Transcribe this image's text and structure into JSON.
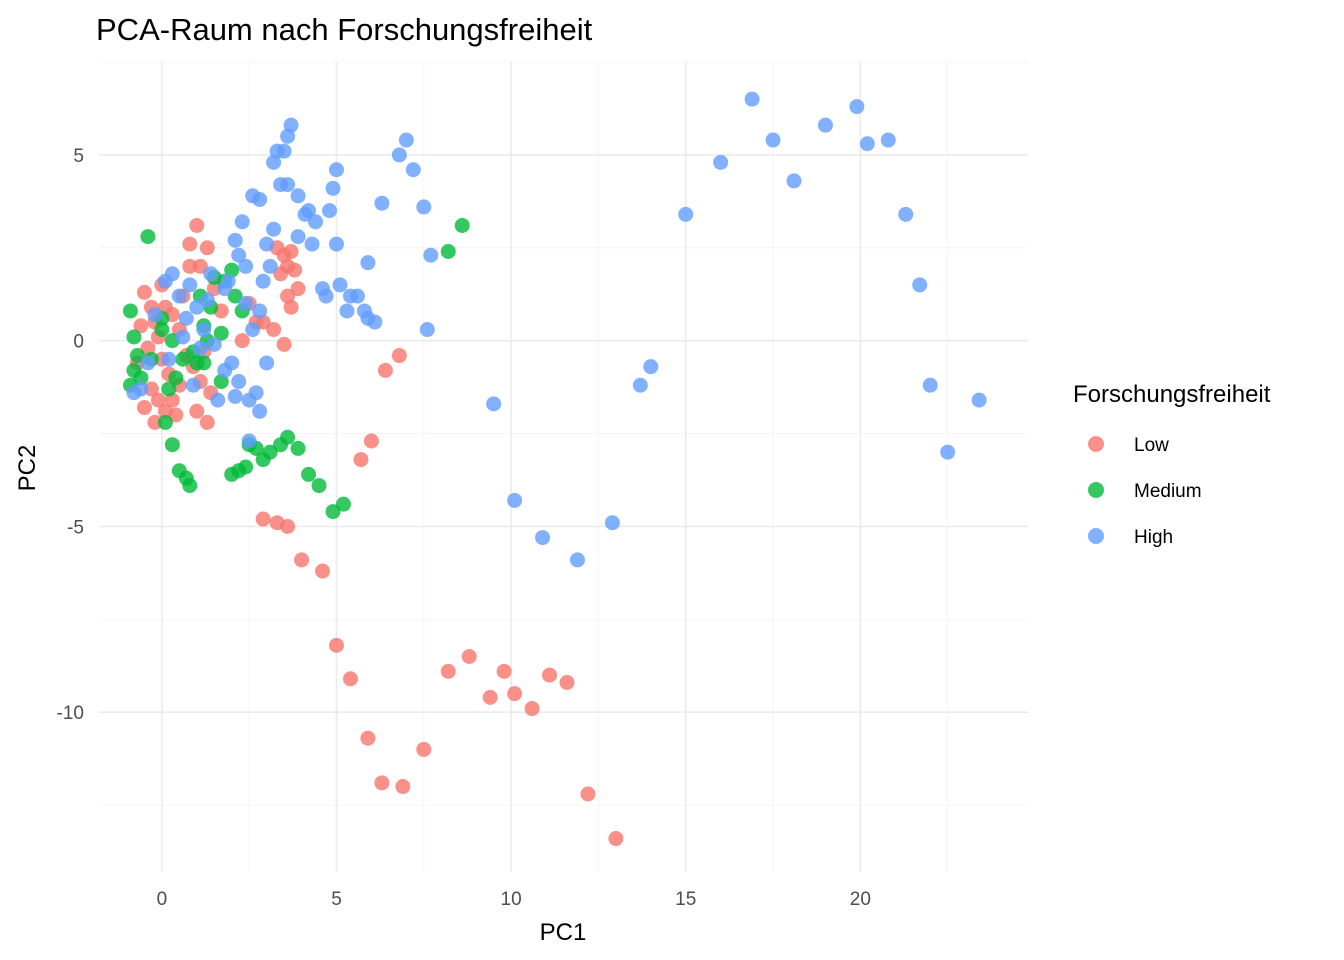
{
  "chart_data": {
    "type": "scatter",
    "title": "PCA-Raum nach Forschungsfreiheit",
    "xlabel": "PC1",
    "ylabel": "PC2",
    "xlim": [
      -1.8,
      24.8
    ],
    "ylim": [
      -14.3,
      7.5
    ],
    "x_ticks": [
      0,
      5,
      10,
      15,
      20
    ],
    "y_ticks": [
      -10,
      -5,
      0,
      5
    ],
    "grid": true,
    "legend": {
      "title": "Forschungsfreiheit",
      "position": "right"
    },
    "series": [
      {
        "name": "Low",
        "color": "#F8766D",
        "points": [
          [
            13.0,
            -13.4
          ],
          [
            12.2,
            -12.2
          ],
          [
            6.9,
            -12.0
          ],
          [
            6.3,
            -11.9
          ],
          [
            5.9,
            -10.7
          ],
          [
            7.5,
            -11.0
          ],
          [
            5.0,
            -8.2
          ],
          [
            5.4,
            -9.1
          ],
          [
            8.2,
            -8.9
          ],
          [
            8.8,
            -8.5
          ],
          [
            9.4,
            -9.6
          ],
          [
            9.8,
            -8.9
          ],
          [
            10.1,
            -9.5
          ],
          [
            10.6,
            -9.9
          ],
          [
            11.1,
            -9.0
          ],
          [
            11.6,
            -9.2
          ],
          [
            4.0,
            -5.9
          ],
          [
            4.6,
            -6.2
          ],
          [
            2.9,
            -4.8
          ],
          [
            3.3,
            -4.9
          ],
          [
            3.6,
            -5.0
          ],
          [
            5.7,
            -3.2
          ],
          [
            6.0,
            -2.7
          ],
          [
            6.4,
            -0.8
          ],
          [
            6.8,
            -0.4
          ],
          [
            1.0,
            -1.9
          ],
          [
            1.3,
            -2.2
          ],
          [
            1.1,
            2.0
          ],
          [
            1.0,
            3.1
          ],
          [
            0.8,
            2.6
          ],
          [
            1.3,
            2.5
          ],
          [
            0.8,
            2.0
          ],
          [
            1.5,
            1.4
          ],
          [
            2.3,
            0.0
          ],
          [
            3.3,
            2.5
          ],
          [
            3.5,
            2.3
          ],
          [
            3.7,
            2.4
          ],
          [
            3.6,
            2.0
          ],
          [
            3.8,
            1.9
          ],
          [
            3.4,
            1.8
          ],
          [
            3.6,
            1.2
          ],
          [
            3.7,
            0.9
          ],
          [
            3.9,
            1.4
          ],
          [
            3.2,
            0.3
          ],
          [
            3.5,
            -0.1
          ],
          [
            2.9,
            0.5
          ],
          [
            2.5,
            1.0
          ],
          [
            2.7,
            0.5
          ],
          [
            1.7,
            0.8
          ],
          [
            1.4,
            -1.4
          ],
          [
            1.1,
            -1.1
          ],
          [
            -0.5,
            1.3
          ],
          [
            -0.3,
            0.9
          ],
          [
            -0.2,
            0.5
          ],
          [
            0.1,
            0.9
          ],
          [
            0.3,
            0.7
          ],
          [
            0.5,
            0.3
          ],
          [
            -0.1,
            0.1
          ],
          [
            -0.4,
            -0.2
          ],
          [
            0.0,
            -0.5
          ],
          [
            0.2,
            -0.9
          ],
          [
            -0.3,
            -1.3
          ],
          [
            -0.5,
            -1.8
          ],
          [
            0.1,
            -1.9
          ],
          [
            -0.2,
            -2.2
          ],
          [
            0.3,
            -1.6
          ],
          [
            0.5,
            -1.2
          ],
          [
            0.7,
            -0.4
          ],
          [
            0.9,
            -0.7
          ],
          [
            1.2,
            -0.3
          ],
          [
            0.6,
            1.2
          ],
          [
            -0.6,
            0.4
          ],
          [
            -0.7,
            -0.6
          ],
          [
            0.4,
            -2.0
          ],
          [
            0.0,
            1.5
          ],
          [
            -0.1,
            -1.6
          ]
        ]
      },
      {
        "name": "Medium",
        "color": "#00BA38",
        "points": [
          [
            -0.4,
            2.8
          ],
          [
            8.6,
            3.1
          ],
          [
            8.2,
            2.4
          ],
          [
            -0.9,
            0.8
          ],
          [
            -0.8,
            0.1
          ],
          [
            -0.7,
            -0.4
          ],
          [
            -0.6,
            -1.0
          ],
          [
            -0.9,
            -1.2
          ],
          [
            -0.3,
            -0.5
          ],
          [
            0.0,
            0.3
          ],
          [
            0.3,
            0.0
          ],
          [
            0.6,
            -0.5
          ],
          [
            0.9,
            -0.3
          ],
          [
            0.4,
            -1.0
          ],
          [
            0.1,
            -2.2
          ],
          [
            0.3,
            -2.8
          ],
          [
            0.5,
            -3.5
          ],
          [
            0.7,
            -3.7
          ],
          [
            0.8,
            -3.9
          ],
          [
            1.0,
            -0.6
          ],
          [
            1.2,
            0.4
          ],
          [
            1.4,
            0.9
          ],
          [
            1.5,
            1.7
          ],
          [
            1.8,
            1.6
          ],
          [
            2.0,
            1.9
          ],
          [
            2.1,
            1.2
          ],
          [
            2.3,
            0.8
          ],
          [
            1.7,
            0.2
          ],
          [
            1.2,
            -0.6
          ],
          [
            2.5,
            -2.8
          ],
          [
            2.7,
            -2.9
          ],
          [
            2.9,
            -3.2
          ],
          [
            3.1,
            -3.0
          ],
          [
            3.4,
            -2.8
          ],
          [
            3.6,
            -2.6
          ],
          [
            3.9,
            -2.9
          ],
          [
            4.2,
            -3.6
          ],
          [
            4.5,
            -3.9
          ],
          [
            4.9,
            -4.6
          ],
          [
            5.2,
            -4.4
          ],
          [
            2.0,
            -3.6
          ],
          [
            2.2,
            -3.5
          ],
          [
            2.4,
            -3.4
          ],
          [
            1.7,
            -1.1
          ],
          [
            0.2,
            -1.3
          ],
          [
            -0.8,
            -0.8
          ],
          [
            0.0,
            0.6
          ],
          [
            1.1,
            1.2
          ],
          [
            1.3,
            0.0
          ]
        ]
      },
      {
        "name": "High",
        "color": "#619CFF",
        "points": [
          [
            16.9,
            6.5
          ],
          [
            17.5,
            5.4
          ],
          [
            16.0,
            4.8
          ],
          [
            18.1,
            4.3
          ],
          [
            19.0,
            5.8
          ],
          [
            19.9,
            6.3
          ],
          [
            20.2,
            5.3
          ],
          [
            20.8,
            5.4
          ],
          [
            21.3,
            3.4
          ],
          [
            21.7,
            1.5
          ],
          [
            22.0,
            -1.2
          ],
          [
            22.5,
            -3.0
          ],
          [
            23.4,
            -1.6
          ],
          [
            15.0,
            3.4
          ],
          [
            14.0,
            -0.7
          ],
          [
            13.7,
            -1.2
          ],
          [
            12.9,
            -4.9
          ],
          [
            11.9,
            -5.9
          ],
          [
            10.9,
            -5.3
          ],
          [
            10.1,
            -4.3
          ],
          [
            9.5,
            -1.7
          ],
          [
            7.6,
            0.3
          ],
          [
            7.7,
            2.3
          ],
          [
            7.5,
            3.6
          ],
          [
            7.2,
            4.6
          ],
          [
            7.0,
            5.4
          ],
          [
            6.8,
            5.0
          ],
          [
            6.3,
            3.7
          ],
          [
            5.0,
            4.6
          ],
          [
            4.9,
            4.1
          ],
          [
            5.0,
            2.6
          ],
          [
            5.4,
            1.2
          ],
          [
            5.6,
            1.2
          ],
          [
            5.8,
            0.8
          ],
          [
            5.9,
            0.6
          ],
          [
            6.1,
            0.5
          ],
          [
            5.9,
            2.1
          ],
          [
            5.1,
            1.5
          ],
          [
            4.6,
            1.4
          ],
          [
            4.4,
            3.2
          ],
          [
            4.2,
            3.5
          ],
          [
            4.1,
            3.4
          ],
          [
            3.9,
            3.9
          ],
          [
            3.6,
            4.2
          ],
          [
            3.4,
            4.2
          ],
          [
            3.5,
            5.1
          ],
          [
            3.3,
            5.1
          ],
          [
            3.2,
            4.8
          ],
          [
            3.6,
            5.5
          ],
          [
            3.7,
            5.8
          ],
          [
            2.8,
            3.8
          ],
          [
            2.6,
            3.9
          ],
          [
            2.3,
            3.2
          ],
          [
            2.1,
            2.7
          ],
          [
            2.2,
            2.3
          ],
          [
            1.9,
            1.6
          ],
          [
            1.8,
            1.4
          ],
          [
            2.4,
            1.0
          ],
          [
            2.6,
            0.3
          ],
          [
            2.8,
            0.8
          ],
          [
            2.9,
            1.6
          ],
          [
            3.1,
            2.0
          ],
          [
            3.0,
            -0.6
          ],
          [
            2.7,
            -1.4
          ],
          [
            2.5,
            -1.6
          ],
          [
            2.2,
            -1.1
          ],
          [
            2.0,
            -0.6
          ],
          [
            2.1,
            -1.5
          ],
          [
            1.8,
            -0.8
          ],
          [
            1.5,
            -0.1
          ],
          [
            1.2,
            0.3
          ],
          [
            1.0,
            0.9
          ],
          [
            1.3,
            1.1
          ],
          [
            0.8,
            1.5
          ],
          [
            0.5,
            1.2
          ],
          [
            0.3,
            1.8
          ],
          [
            0.1,
            1.6
          ],
          [
            -0.2,
            0.7
          ],
          [
            -0.6,
            -1.3
          ],
          [
            -0.8,
            -1.4
          ],
          [
            -0.4,
            -0.6
          ],
          [
            0.2,
            -0.5
          ],
          [
            0.6,
            0.1
          ],
          [
            0.7,
            0.6
          ],
          [
            4.8,
            3.5
          ],
          [
            4.3,
            2.6
          ],
          [
            3.9,
            2.8
          ],
          [
            3.2,
            3.0
          ],
          [
            3.0,
            2.6
          ],
          [
            2.4,
            2.0
          ],
          [
            4.7,
            1.2
          ],
          [
            5.3,
            0.8
          ],
          [
            2.5,
            -2.7
          ],
          [
            2.8,
            -1.9
          ],
          [
            0.9,
            -1.2
          ],
          [
            1.6,
            -1.6
          ],
          [
            1.4,
            1.8
          ],
          [
            1.1,
            -0.2
          ]
        ]
      }
    ]
  }
}
